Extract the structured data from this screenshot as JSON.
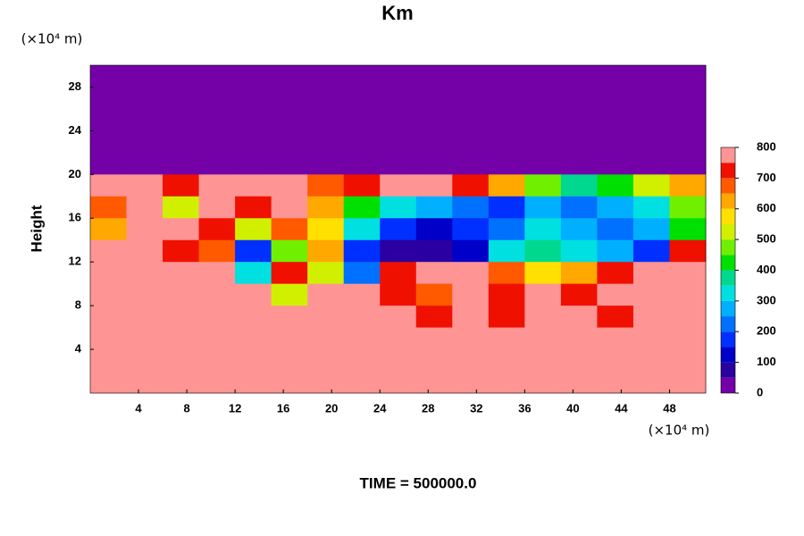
{
  "chart_data": {
    "type": "contour",
    "title": "Km",
    "ylabel": "Height",
    "xunit": "(×10⁴ m)",
    "yunit": "(×10⁴ m)",
    "footer": "TIME = 500000.0",
    "xlim": [
      0,
      51
    ],
    "ylim": [
      0,
      30
    ],
    "xticks": [
      4,
      8,
      12,
      16,
      20,
      24,
      28,
      32,
      36,
      40,
      44,
      48
    ],
    "yticks": [
      4,
      8,
      12,
      16,
      20,
      24,
      28
    ],
    "levels": [
      0,
      50,
      100,
      150,
      200,
      250,
      300,
      350,
      400,
      450,
      500,
      550,
      600,
      650,
      700,
      750,
      800
    ],
    "colors": [
      "#7400a8",
      "#2a00a0",
      "#0000c8",
      "#0030ff",
      "#0070ff",
      "#00b0ff",
      "#00e0e0",
      "#00d890",
      "#00e000",
      "#70f000",
      "#d0f000",
      "#ffe000",
      "#ffa800",
      "#ff5a00",
      "#f01000",
      "#ff9494"
    ],
    "cbar_ticks": [
      0,
      100,
      200,
      300,
      400,
      500,
      600,
      700,
      800
    ],
    "x": [
      1.5,
      4.5,
      7.5,
      10.5,
      13.5,
      16.5,
      19.5,
      22.5,
      25.5,
      28.5,
      31.5,
      34.5,
      37.5,
      40.5,
      43.5,
      46.5,
      49.5
    ],
    "y": [
      29,
      27,
      25,
      23,
      21,
      19,
      17,
      15,
      13,
      11,
      9,
      7,
      5,
      3,
      1
    ],
    "z": [
      [
        0,
        0,
        0,
        0,
        0,
        0,
        0,
        0,
        0,
        0,
        0,
        0,
        0,
        0,
        0,
        0,
        0
      ],
      [
        0,
        0,
        0,
        0,
        0,
        0,
        0,
        0,
        0,
        0,
        0,
        0,
        0,
        0,
        0,
        0,
        0
      ],
      [
        0,
        0,
        0,
        0,
        0,
        0,
        0,
        0,
        0,
        0,
        0,
        0,
        0,
        0,
        0,
        0,
        0
      ],
      [
        0,
        0,
        0,
        0,
        0,
        0,
        0,
        0,
        0,
        0,
        0,
        0,
        0,
        0,
        0,
        0,
        0
      ],
      [
        0,
        0,
        0,
        0,
        0,
        0,
        0,
        0,
        0,
        0,
        0,
        0,
        0,
        0,
        0,
        0,
        0
      ],
      [
        800,
        750,
        700,
        800,
        750,
        800,
        650,
        700,
        800,
        750,
        700,
        600,
        450,
        350,
        400,
        500,
        600
      ],
      [
        650,
        800,
        500,
        800,
        700,
        750,
        600,
        400,
        300,
        250,
        200,
        150,
        250,
        200,
        250,
        300,
        450
      ],
      [
        600,
        800,
        750,
        700,
        500,
        650,
        550,
        300,
        150,
        100,
        150,
        200,
        300,
        250,
        200,
        250,
        400
      ],
      [
        800,
        800,
        700,
        650,
        150,
        450,
        600,
        150,
        50,
        50,
        100,
        300,
        350,
        300,
        250,
        150,
        700
      ],
      [
        800,
        750,
        800,
        800,
        300,
        700,
        500,
        200,
        700,
        750,
        800,
        650,
        550,
        600,
        700,
        750,
        800
      ],
      [
        750,
        800,
        800,
        800,
        750,
        500,
        750,
        800,
        700,
        650,
        750,
        700,
        800,
        700,
        750,
        800,
        800
      ],
      [
        800,
        750,
        800,
        800,
        800,
        800,
        800,
        750,
        800,
        700,
        750,
        700,
        800,
        750,
        700,
        750,
        800
      ],
      [
        800,
        750,
        800,
        800,
        800,
        800,
        800,
        750,
        800,
        800,
        750,
        800,
        800,
        750,
        800,
        750,
        800
      ],
      [
        800,
        800,
        800,
        800,
        800,
        800,
        800,
        750,
        800,
        800,
        800,
        800,
        800,
        800,
        800,
        800,
        800
      ],
      [
        800,
        800,
        800,
        800,
        800,
        800,
        800,
        800,
        800,
        800,
        800,
        800,
        800,
        800,
        800,
        800,
        800
      ]
    ]
  }
}
